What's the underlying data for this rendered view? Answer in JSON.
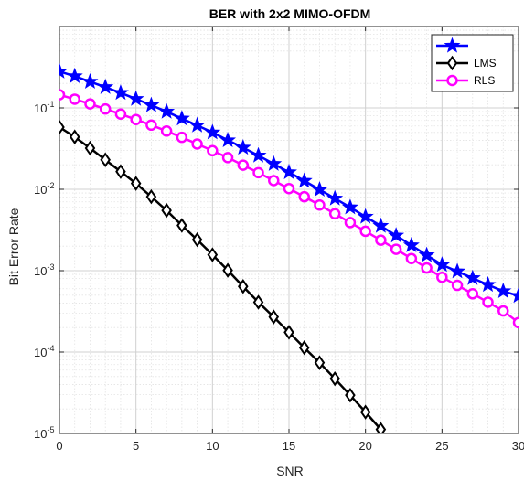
{
  "chart_data": {
    "type": "line",
    "title": "BER with 2x2 MIMO-OFDM",
    "xlabel": "SNR",
    "ylabel": "Bit Error Rate",
    "xlim": [
      0,
      30
    ],
    "ylim": [
      1e-05,
      1
    ],
    "yscale": "log",
    "grid": true,
    "minor_grid": true,
    "legend_position": "top-right",
    "x_ticks": [
      0,
      5,
      10,
      15,
      20,
      25,
      30
    ],
    "y_ticks": [
      {
        "value": 1e-05,
        "base": "10",
        "exp": "-5"
      },
      {
        "value": 0.0001,
        "base": "10",
        "exp": "-4"
      },
      {
        "value": 0.001,
        "base": "10",
        "exp": "-3"
      },
      {
        "value": 0.01,
        "base": "10",
        "exp": "-2"
      },
      {
        "value": 0.1,
        "base": "10",
        "exp": "-1"
      }
    ],
    "series": [
      {
        "name": "",
        "color": "#0000ff",
        "marker": "star",
        "x": [
          0,
          1,
          2,
          3,
          4,
          5,
          6,
          7,
          8,
          9,
          10,
          11,
          12,
          13,
          14,
          15,
          16,
          17,
          18,
          19,
          20,
          21,
          22,
          23,
          24,
          25,
          26,
          27,
          28,
          29,
          30
        ],
        "y": [
          0.28,
          0.245,
          0.21,
          0.18,
          0.153,
          0.129,
          0.108,
          0.09,
          0.074,
          0.061,
          0.05,
          0.04,
          0.0325,
          0.026,
          0.0205,
          0.0162,
          0.0127,
          0.0099,
          0.0077,
          0.006,
          0.0046,
          0.00355,
          0.0027,
          0.00205,
          0.00155,
          0.00118,
          0.00098,
          0.00081,
          0.00067,
          0.00056,
          0.00049
        ]
      },
      {
        "name": "LMS",
        "color": "#000000",
        "marker": "diamond",
        "x": [
          0,
          1,
          2,
          3,
          4,
          5,
          6,
          7,
          8,
          9,
          10,
          11,
          12,
          13,
          14,
          15,
          16,
          17,
          18,
          19,
          20,
          21
        ],
        "y": [
          0.058,
          0.044,
          0.032,
          0.023,
          0.0165,
          0.0118,
          0.0081,
          0.0055,
          0.0036,
          0.0024,
          0.00157,
          0.00101,
          0.00064,
          0.00041,
          0.00027,
          0.000175,
          0.000113,
          7.4e-05,
          4.7e-05,
          2.95e-05,
          1.83e-05,
          1.12e-05
        ]
      },
      {
        "name": "RLS",
        "color": "#ff00ff",
        "marker": "circle",
        "x": [
          0,
          1,
          2,
          3,
          4,
          5,
          6,
          7,
          8,
          9,
          10,
          11,
          12,
          13,
          14,
          15,
          16,
          17,
          18,
          19,
          20,
          21,
          22,
          23,
          24,
          25,
          26,
          27,
          28,
          29,
          30
        ],
        "y": [
          0.145,
          0.128,
          0.112,
          0.097,
          0.084,
          0.072,
          0.0615,
          0.052,
          0.0435,
          0.036,
          0.0298,
          0.0245,
          0.0198,
          0.016,
          0.0128,
          0.0102,
          0.0081,
          0.0064,
          0.005,
          0.0039,
          0.00305,
          0.00237,
          0.00183,
          0.00141,
          0.00108,
          0.00083,
          0.00066,
          0.00052,
          0.00041,
          0.00032,
          0.00023
        ]
      }
    ]
  }
}
